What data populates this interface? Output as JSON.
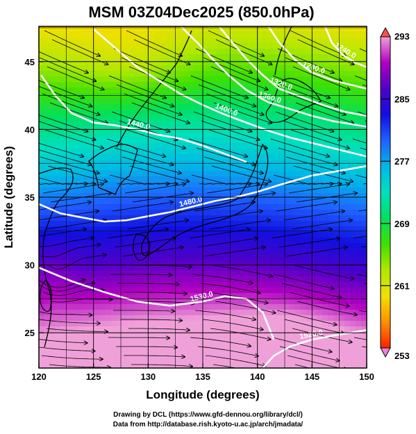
{
  "title": "MSM 03Z04Dec2025 (850.0hPa)",
  "xlabel": "Longitude (degrees)",
  "ylabel": "Latitude  (degrees)",
  "x_ticks": [
    "120",
    "125",
    "130",
    "135",
    "140",
    "145",
    "150"
  ],
  "x_tick_values": [
    120,
    125,
    130,
    135,
    140,
    145,
    150
  ],
  "y_ticks": [
    "25",
    "30",
    "35",
    "40",
    "45"
  ],
  "y_tick_values": [
    25,
    30,
    35,
    40,
    45
  ],
  "lon_range": [
    120,
    150
  ],
  "lat_range": [
    22.4,
    47.6
  ],
  "colorbar": {
    "labels": [
      "293",
      "285",
      "277",
      "269",
      "261",
      "253"
    ],
    "values": [
      293,
      285,
      277,
      269,
      261,
      253
    ],
    "range": [
      253,
      293
    ],
    "stops": [
      "#f0a0d8",
      "#b000c0",
      "#5000c8",
      "#1010e0",
      "#2060ff",
      "#00b8e8",
      "#00e0c0",
      "#00e060",
      "#40e000",
      "#b0e800",
      "#f0e000",
      "#ff9000",
      "#ff2000"
    ]
  },
  "contours": [
    {
      "label": "1440.0",
      "points": [
        [
          120.2,
          44.0
        ],
        [
          121.5,
          42.5
        ],
        [
          123,
          41.2
        ],
        [
          125,
          40.5
        ],
        [
          127,
          40.3
        ],
        [
          129,
          40.0
        ],
        [
          131,
          39.6
        ],
        [
          133,
          39.3
        ],
        [
          135,
          38.8
        ],
        [
          137,
          38.2
        ],
        [
          139,
          37.6
        ]
      ]
    },
    {
      "label": "1400.0",
      "points": [
        [
          125,
          47.4
        ],
        [
          127,
          46.0
        ],
        [
          129,
          44.6
        ],
        [
          131,
          43.6
        ],
        [
          133,
          42.6
        ],
        [
          135,
          41.8
        ],
        [
          137,
          41.1
        ],
        [
          139,
          40.5
        ],
        [
          141,
          39.9
        ],
        [
          143,
          39.4
        ],
        [
          145,
          39.0
        ],
        [
          147,
          38.6
        ],
        [
          150,
          38.0
        ]
      ]
    },
    {
      "label": "1360.0",
      "points": [
        [
          133,
          47.6
        ],
        [
          134.5,
          46.4
        ],
        [
          136,
          45.1
        ],
        [
          137.5,
          43.9
        ],
        [
          139,
          42.9
        ],
        [
          141,
          42.0
        ],
        [
          143,
          41.5
        ],
        [
          145,
          41.0
        ],
        [
          147,
          40.6
        ],
        [
          150,
          40.2
        ]
      ]
    },
    {
      "label": "1320.0",
      "points": [
        [
          136.5,
          47.6
        ],
        [
          137.5,
          46.6
        ],
        [
          139,
          45.2
        ],
        [
          140.5,
          44.0
        ],
        [
          142,
          43.0
        ],
        [
          144,
          42.4
        ],
        [
          146,
          41.8
        ],
        [
          148,
          41.3
        ],
        [
          150,
          41.0
        ]
      ]
    },
    {
      "label": "1280.0",
      "points": [
        [
          141,
          47.6
        ],
        [
          142,
          46.4
        ],
        [
          143.5,
          45.1
        ],
        [
          145,
          44.2
        ],
        [
          147,
          43.6
        ],
        [
          150,
          43.0
        ]
      ]
    },
    {
      "label": "1240.0",
      "points": [
        [
          146.2,
          47.6
        ],
        [
          146.8,
          46.4
        ],
        [
          147.8,
          45.5
        ],
        [
          149,
          44.9
        ],
        [
          150,
          44.6
        ]
      ]
    },
    {
      "label": "1480.0",
      "points": [
        [
          120,
          34.5
        ],
        [
          122,
          33.8
        ],
        [
          124,
          33.5
        ],
        [
          126,
          33.2
        ],
        [
          128,
          33.3
        ],
        [
          130,
          33.6
        ],
        [
          132,
          33.9
        ],
        [
          134,
          34.3
        ],
        [
          136,
          34.7
        ],
        [
          138,
          35.0
        ],
        [
          140,
          35.4
        ],
        [
          142,
          35.9
        ],
        [
          145,
          36.6
        ],
        [
          150,
          37.3
        ]
      ]
    },
    {
      "label": "1520.0",
      "points": [
        [
          140.5,
          22.4
        ],
        [
          141.5,
          23.3
        ],
        [
          143,
          24.0
        ],
        [
          145,
          24.5
        ],
        [
          147,
          24.8
        ],
        [
          150,
          25.2
        ]
      ]
    },
    {
      "label": "1530.0",
      "points": [
        [
          120,
          29.8
        ],
        [
          123,
          28.8
        ],
        [
          126,
          28.0
        ],
        [
          129,
          27.3
        ],
        [
          132,
          27.0
        ],
        [
          135,
          27.3
        ],
        [
          137,
          27.7
        ],
        [
          139,
          27.5
        ],
        [
          140.5,
          26.5
        ],
        [
          141.5,
          24.5
        ]
      ]
    }
  ]
}
